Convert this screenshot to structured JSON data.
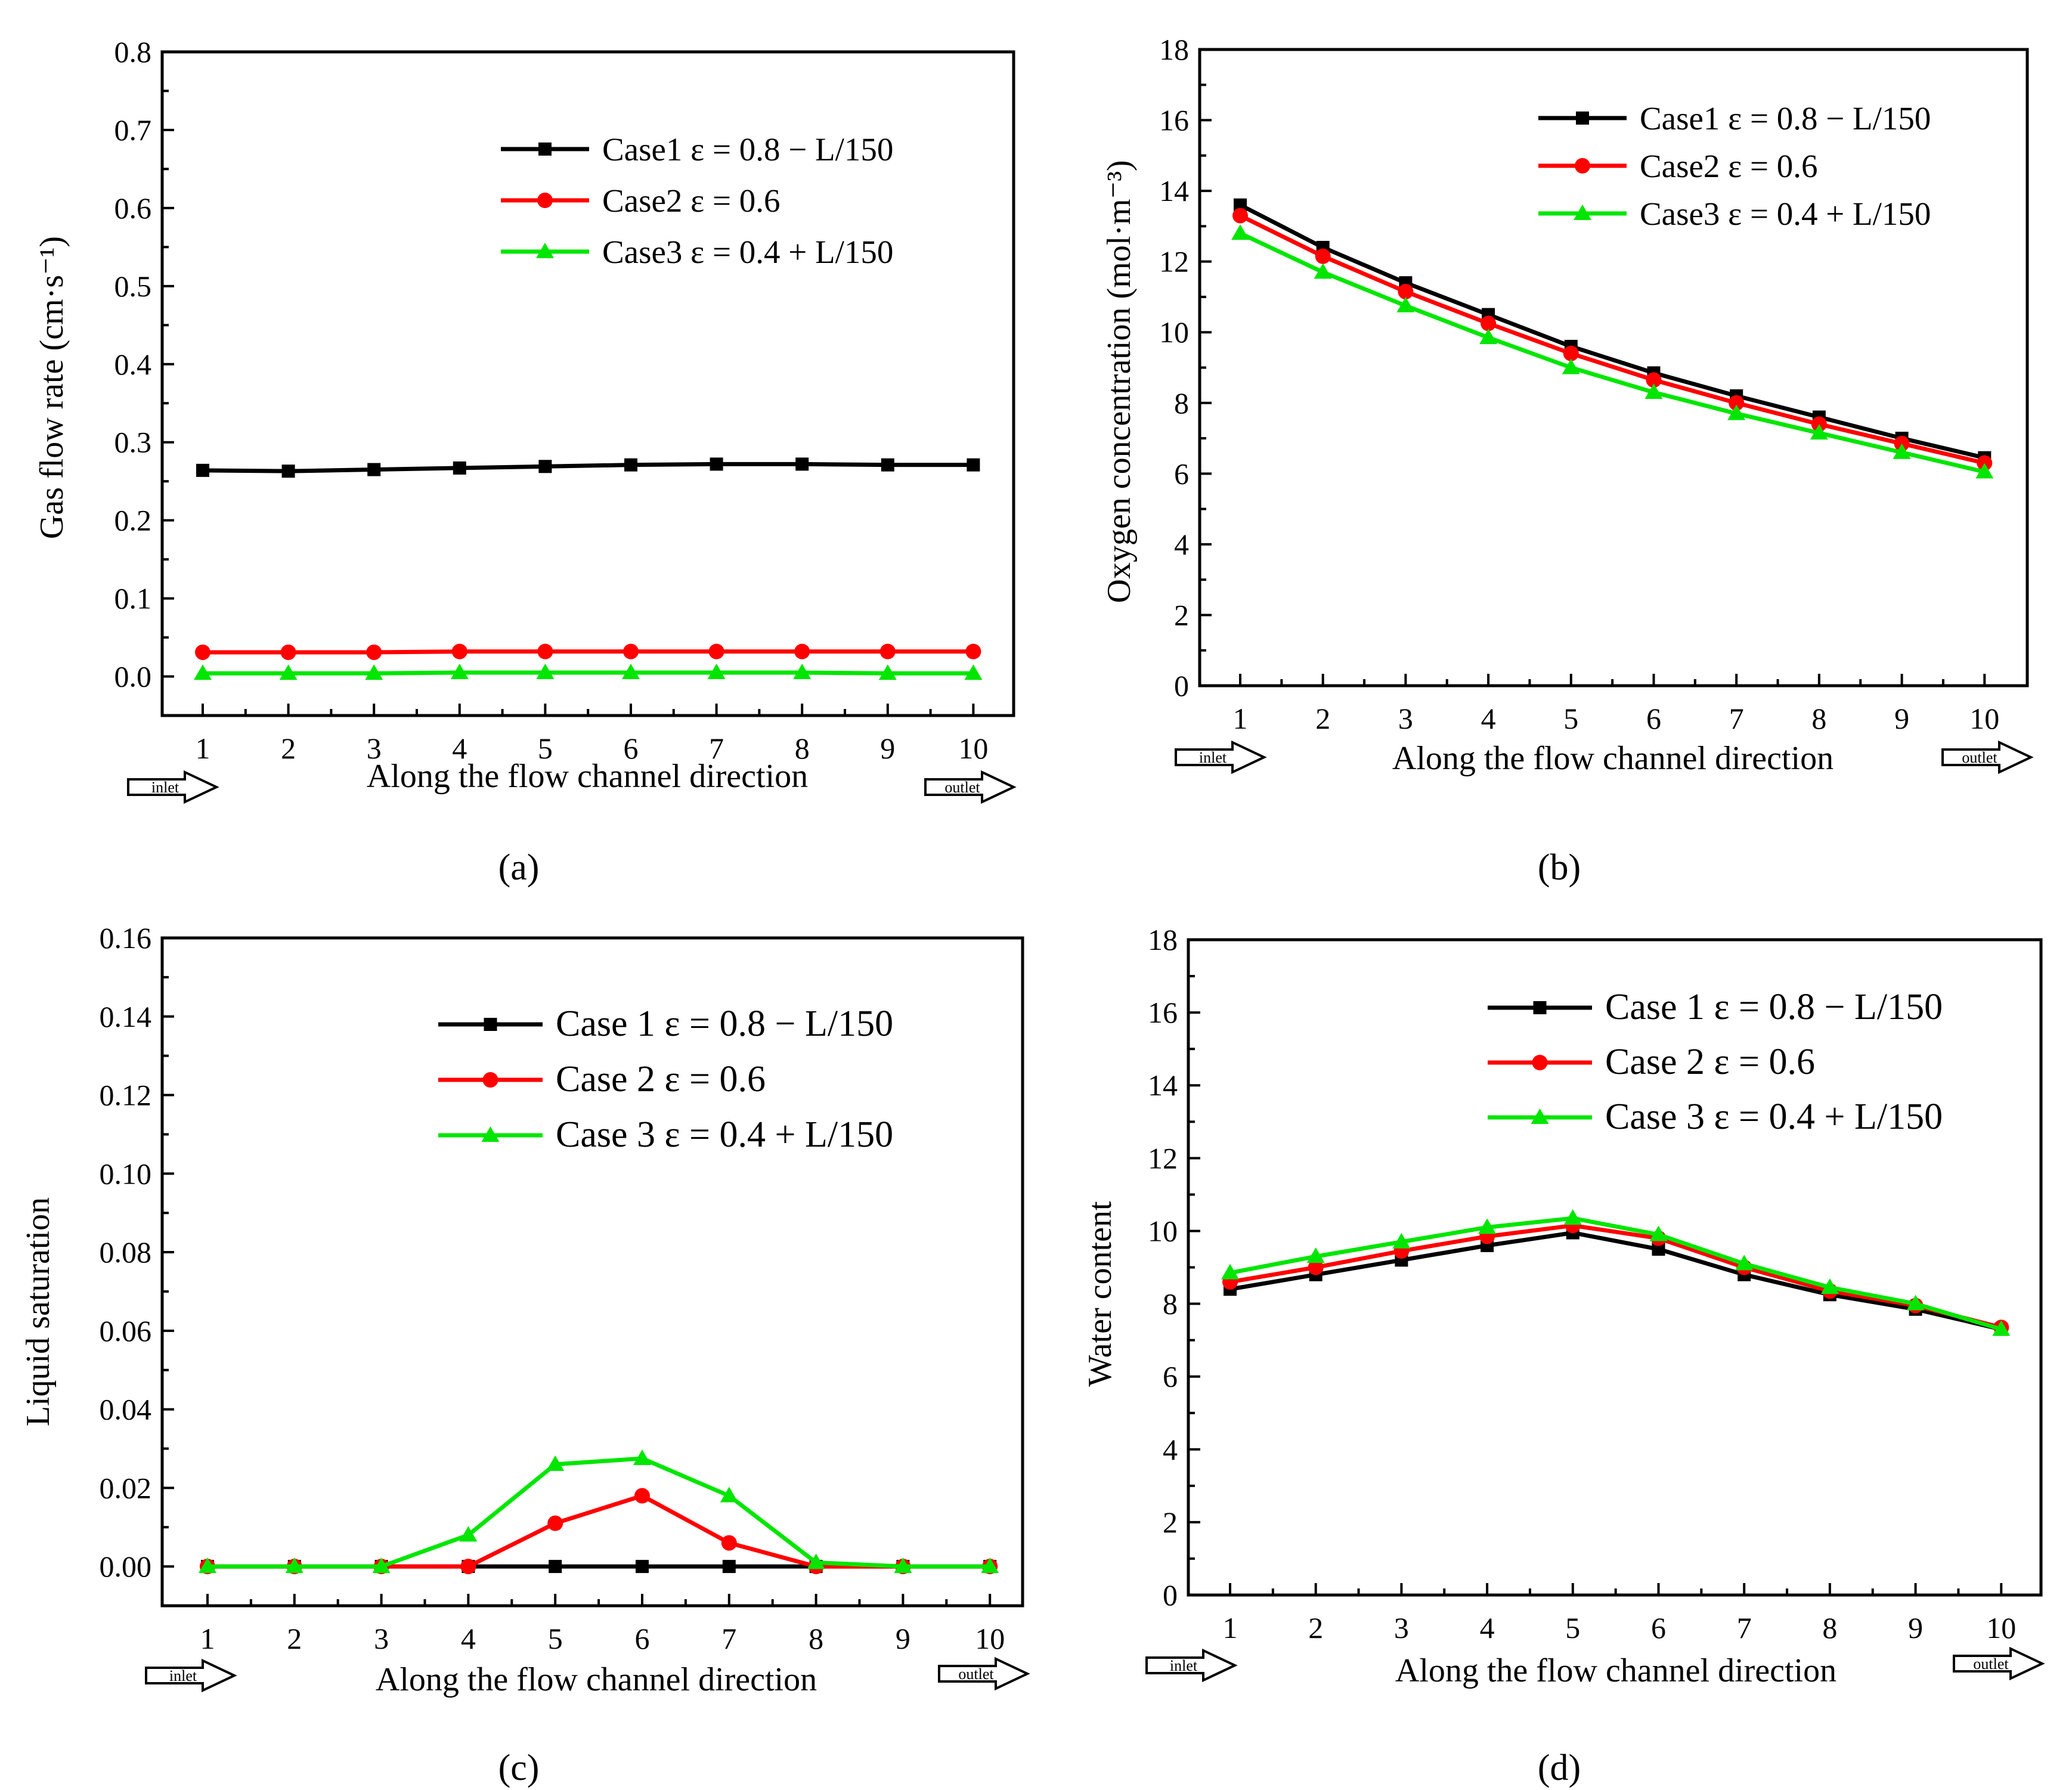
{
  "colors": {
    "case1": "#000000",
    "case2": "#ff0000",
    "case3": "#00e600"
  },
  "chart_data": [
    {
      "id": "a",
      "type": "line",
      "panel_label": "(a)",
      "xlabel": "Along the flow channel direction",
      "ylabel": "Gas flow rate (cm·s⁻¹)",
      "categories": [
        1,
        2,
        3,
        4,
        5,
        6,
        7,
        8,
        9,
        10
      ],
      "ylim": [
        -0.05,
        0.8
      ],
      "yticks": [
        0.0,
        0.1,
        0.2,
        0.3,
        0.4,
        0.5,
        0.6,
        0.7,
        0.8
      ],
      "ydecimals": 1,
      "inlet_label": "inlet",
      "outlet_label": "outlet",
      "series": [
        {
          "name": "Case1 ε = 0.8 − L/150",
          "values": [
            0.264,
            0.263,
            0.265,
            0.267,
            0.269,
            0.271,
            0.272,
            0.272,
            0.271,
            0.271
          ]
        },
        {
          "name": "Case2 ε = 0.6",
          "values": [
            0.031,
            0.031,
            0.031,
            0.032,
            0.032,
            0.032,
            0.032,
            0.032,
            0.032,
            0.032
          ]
        },
        {
          "name": "Case3 ε = 0.4 + L/150",
          "values": [
            0.004,
            0.004,
            0.004,
            0.005,
            0.005,
            0.005,
            0.005,
            0.005,
            0.004,
            0.004
          ]
        }
      ]
    },
    {
      "id": "b",
      "type": "line",
      "panel_label": "(b)",
      "xlabel": "Along the flow channel direction",
      "ylabel": "Oxygen concentration (mol·m⁻³)",
      "categories": [
        1,
        2,
        3,
        4,
        5,
        6,
        7,
        8,
        9,
        10
      ],
      "ylim": [
        0,
        18
      ],
      "yticks": [
        0,
        2,
        4,
        6,
        8,
        10,
        12,
        14,
        16,
        18
      ],
      "ydecimals": 0,
      "inlet_label": "inlet",
      "outlet_label": "outlet",
      "series": [
        {
          "name": "Case1 ε = 0.8 − L/150",
          "values": [
            13.6,
            12.4,
            11.4,
            10.5,
            9.6,
            8.85,
            8.2,
            7.6,
            7.0,
            6.45
          ]
        },
        {
          "name": "Case2 ε = 0.6",
          "values": [
            13.3,
            12.15,
            11.15,
            10.25,
            9.4,
            8.65,
            8.0,
            7.4,
            6.85,
            6.3
          ]
        },
        {
          "name": "Case3 ε = 0.4 + L/150",
          "values": [
            12.8,
            11.7,
            10.75,
            9.85,
            9.0,
            8.3,
            7.7,
            7.15,
            6.6,
            6.05
          ]
        }
      ]
    },
    {
      "id": "c",
      "type": "line",
      "panel_label": "(c)",
      "xlabel": "Along the flow channel direction",
      "ylabel": "Liquid saturation",
      "categories": [
        1,
        2,
        3,
        4,
        5,
        6,
        7,
        8,
        9,
        10
      ],
      "ylim": [
        -0.01,
        0.16
      ],
      "yticks": [
        0.0,
        0.02,
        0.04,
        0.06,
        0.08,
        0.1,
        0.12,
        0.14,
        0.16
      ],
      "ydecimals": 2,
      "inlet_label": "inlet",
      "outlet_label": "outlet",
      "series": [
        {
          "name": "Case 1 ε = 0.8 − L/150",
          "values": [
            0,
            0,
            0,
            0,
            0,
            0,
            0,
            0,
            0,
            0
          ]
        },
        {
          "name": "Case 2 ε = 0.6",
          "values": [
            0,
            0,
            0,
            0,
            0.011,
            0.018,
            0.006,
            0,
            0,
            0
          ]
        },
        {
          "name": "Case 3 ε = 0.4 + L/150",
          "values": [
            0,
            0,
            0,
            0.008,
            0.026,
            0.0275,
            0.018,
            0.001,
            0,
            0
          ]
        }
      ]
    },
    {
      "id": "d",
      "type": "line",
      "panel_label": "(d)",
      "xlabel": "Along the flow channel direction",
      "ylabel": "Water content",
      "categories": [
        1,
        2,
        3,
        4,
        5,
        6,
        7,
        8,
        9,
        10
      ],
      "ylim": [
        0,
        18
      ],
      "yticks": [
        0,
        2,
        4,
        6,
        8,
        10,
        12,
        14,
        16,
        18
      ],
      "ydecimals": 0,
      "inlet_label": "inlet",
      "outlet_label": "outlet",
      "series": [
        {
          "name": "Case 1 ε = 0.8 − L/150",
          "values": [
            8.4,
            8.8,
            9.2,
            9.6,
            9.95,
            9.5,
            8.8,
            8.25,
            7.85,
            7.3
          ]
        },
        {
          "name": "Case 2 ε = 0.6",
          "values": [
            8.6,
            9.0,
            9.45,
            9.85,
            10.15,
            9.8,
            9.0,
            8.35,
            7.95,
            7.35
          ]
        },
        {
          "name": "Case 3 ε = 0.4 + L/150",
          "values": [
            8.85,
            9.3,
            9.7,
            10.1,
            10.35,
            9.9,
            9.1,
            8.45,
            8.0,
            7.3
          ]
        }
      ]
    }
  ]
}
